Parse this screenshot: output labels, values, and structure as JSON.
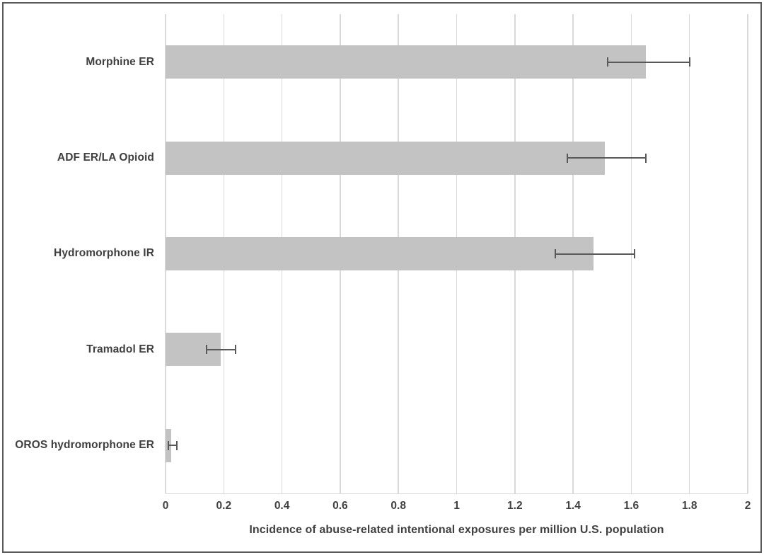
{
  "figure": {
    "background": "#ffffff",
    "border_color": "#595959"
  },
  "chart_data": {
    "type": "bar",
    "orientation": "horizontal",
    "title": "",
    "xlabel": "Incidence of abuse-related intentional exposures per million U.S. population",
    "ylabel": "",
    "xlim": [
      0,
      2
    ],
    "x_tick_values": [
      0,
      0.2,
      0.4,
      0.6,
      0.8,
      1,
      1.2,
      1.4,
      1.6,
      1.8,
      2
    ],
    "x_tick_labels": [
      "0",
      "0.2",
      "0.4",
      "0.6",
      "0.8",
      "1",
      "1.2",
      "1.4",
      "1.6",
      "1.8",
      "2"
    ],
    "grid": true,
    "legend": "none",
    "categories": [
      "Morphine ER",
      "ADF ER/LA Opioid",
      "Hydromorphone IR",
      "Tramadol ER",
      "OROS hydromorphone ER"
    ],
    "values": [
      1.65,
      1.51,
      1.47,
      0.19,
      0.02
    ],
    "error_low": [
      1.52,
      1.38,
      1.34,
      0.14,
      0.01
    ],
    "error_high": [
      1.8,
      1.65,
      1.61,
      0.24,
      0.04
    ],
    "colors": {
      "bar_fill": "#c3c3c3",
      "error_bar": "#595959",
      "gridline": "#d9d9d9",
      "text": "#404040"
    }
  }
}
